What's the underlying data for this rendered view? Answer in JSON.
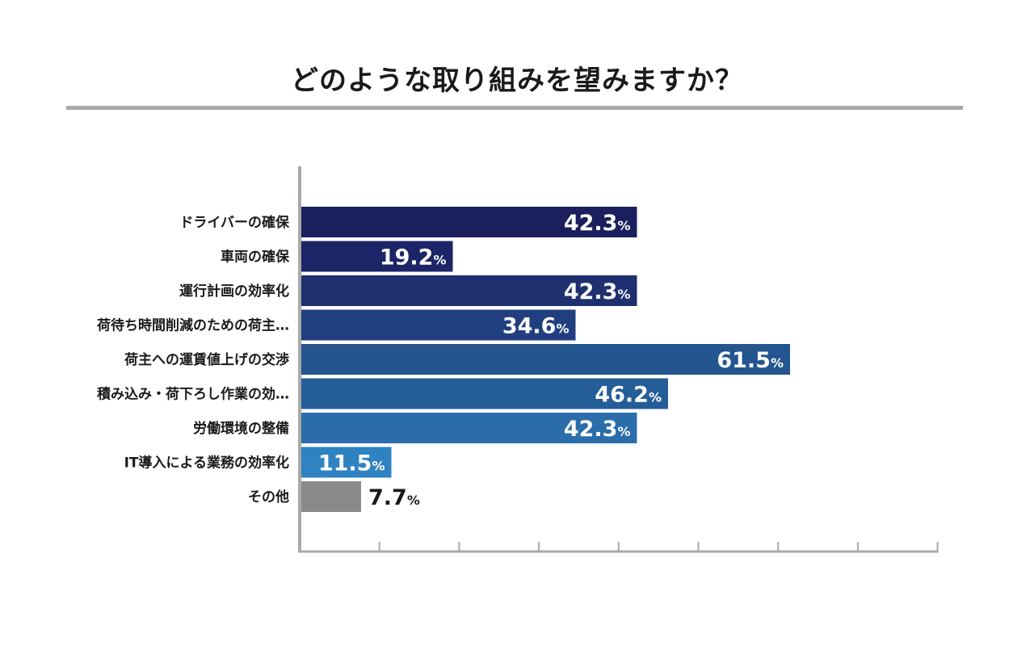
{
  "title": "どのような取り組みを望みますか？",
  "chart_data": {
    "type": "bar",
    "orientation": "horizontal",
    "title": "どのような取り組みを望みますか？",
    "xlabel": "",
    "ylabel": "",
    "xlim": [
      0,
      80
    ],
    "grid": false,
    "unit": "%",
    "categories": [
      "ドライバーの確保",
      "車両の確保",
      "運行計画の効率化",
      "荷待ち時間削減のための荷主…",
      "荷主への運賃値上げの交渉",
      "積み込み・荷下ろし作業の効…",
      "労働環境の整備",
      "IT導入による業務の効率化",
      "その他"
    ],
    "values": [
      42.3,
      19.2,
      42.3,
      34.6,
      61.5,
      46.2,
      42.3,
      11.5,
      7.7
    ],
    "colors": [
      "#1b1f5e",
      "#1c2567",
      "#1e3070",
      "#213f7f",
      "#24558e",
      "#245d97",
      "#2a6daa",
      "#2f83c0",
      "#8a8a8a"
    ]
  }
}
